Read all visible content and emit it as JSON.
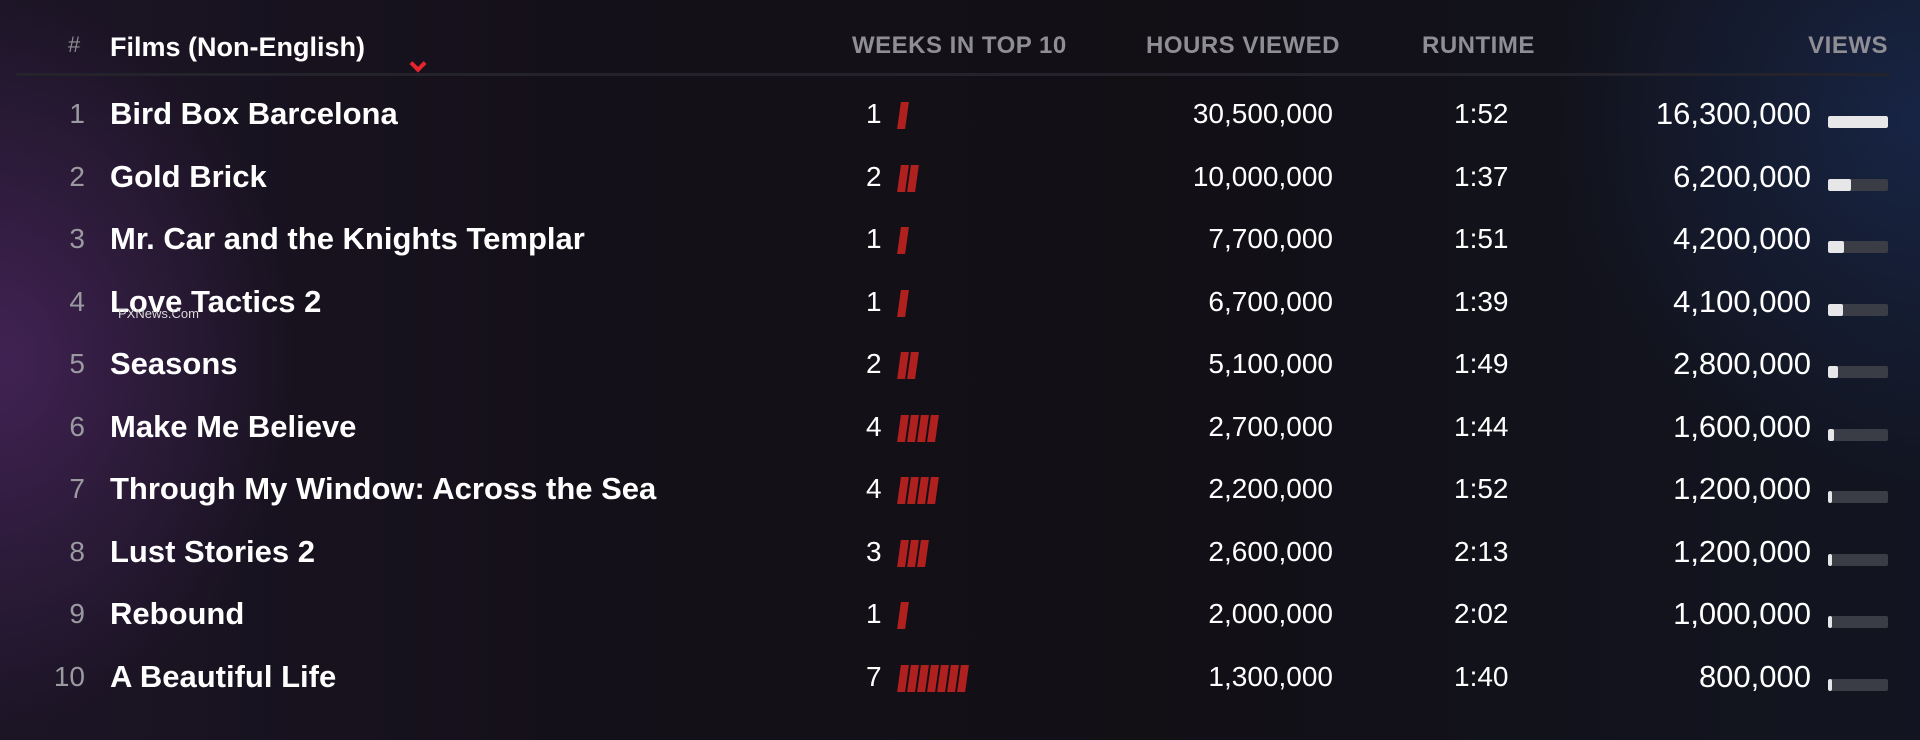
{
  "header": {
    "rank_label": "#",
    "title_label": "Films (Non-English)",
    "weeks_label": "WEEKS IN TOP 10",
    "hours_label": "HOURS VIEWED",
    "runtime_label": "RUNTIME",
    "views_label": "VIEWS",
    "dropdown_icon": "chevron-down-icon",
    "accent_color": "#e5242c"
  },
  "overlay_text": "PXNews.Com",
  "rows": [
    {
      "rank": "1",
      "title": "Bird Box Barcelona",
      "weeks": "1",
      "weeks_count": 1,
      "hours": "30,500,000",
      "runtime": "1:52",
      "views": "16,300,000",
      "views_fraction": 1.0
    },
    {
      "rank": "2",
      "title": "Gold Brick",
      "weeks": "2",
      "weeks_count": 2,
      "hours": "10,000,000",
      "runtime": "1:37",
      "views": "6,200,000",
      "views_fraction": 0.38
    },
    {
      "rank": "3",
      "title": "Mr. Car and the Knights Templar",
      "weeks": "1",
      "weeks_count": 1,
      "hours": "7,700,000",
      "runtime": "1:51",
      "views": "4,200,000",
      "views_fraction": 0.26
    },
    {
      "rank": "4",
      "title": "Love Tactics 2",
      "weeks": "1",
      "weeks_count": 1,
      "hours": "6,700,000",
      "runtime": "1:39",
      "views": "4,100,000",
      "views_fraction": 0.25
    },
    {
      "rank": "5",
      "title": "Seasons",
      "weeks": "2",
      "weeks_count": 2,
      "hours": "5,100,000",
      "runtime": "1:49",
      "views": "2,800,000",
      "views_fraction": 0.17
    },
    {
      "rank": "6",
      "title": "Make Me Believe",
      "weeks": "4",
      "weeks_count": 4,
      "hours": "2,700,000",
      "runtime": "1:44",
      "views": "1,600,000",
      "views_fraction": 0.1
    },
    {
      "rank": "7",
      "title": "Through My Window: Across the Sea",
      "weeks": "4",
      "weeks_count": 4,
      "hours": "2,200,000",
      "runtime": "1:52",
      "views": "1,200,000",
      "views_fraction": 0.07
    },
    {
      "rank": "8",
      "title": "Lust Stories 2",
      "weeks": "3",
      "weeks_count": 3,
      "hours": "2,600,000",
      "runtime": "2:13",
      "views": "1,200,000",
      "views_fraction": 0.07
    },
    {
      "rank": "9",
      "title": "Rebound",
      "weeks": "1",
      "weeks_count": 1,
      "hours": "2,000,000",
      "runtime": "2:02",
      "views": "1,000,000",
      "views_fraction": 0.06
    },
    {
      "rank": "10",
      "title": "A Beautiful Life",
      "weeks": "7",
      "weeks_count": 7,
      "hours": "1,300,000",
      "runtime": "1:40",
      "views": "800,000",
      "views_fraction": 0.05
    }
  ],
  "colors": {
    "week_bar": "#b0201f",
    "views_bar_fill": "#e7e7ea",
    "views_bar_track": "#3a3c46"
  }
}
